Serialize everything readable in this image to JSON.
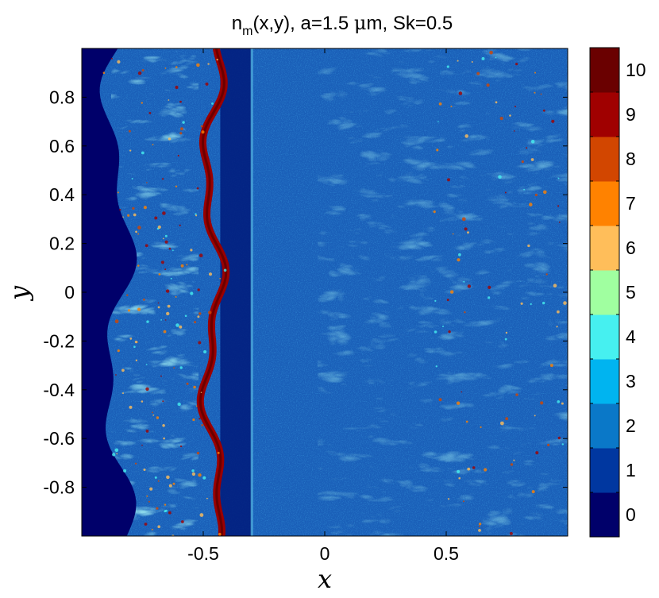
{
  "chart_data": {
    "type": "heatmap",
    "title": {
      "main_prefix": "n",
      "main_sub": "m",
      "main_suffix": "(x,y), a=1.5 ",
      "mu": "μ",
      "unit_tail": "m, Sk=0.5"
    },
    "xlabel": "x",
    "ylabel": "y",
    "xlim": [
      -1,
      1
    ],
    "ylim": [
      -1,
      1
    ],
    "x_ticks": [
      {
        "value": -0.5,
        "label": "-0.5"
      },
      {
        "value": 0,
        "label": "0"
      },
      {
        "value": 0.5,
        "label": "0.5"
      }
    ],
    "y_ticks": [
      {
        "value": 0.8,
        "label": "0.8"
      },
      {
        "value": 0.6,
        "label": "0.6"
      },
      {
        "value": 0.4,
        "label": "0.4"
      },
      {
        "value": 0.2,
        "label": "0.2"
      },
      {
        "value": 0,
        "label": "0"
      },
      {
        "value": -0.2,
        "label": "-0.2"
      },
      {
        "value": -0.4,
        "label": "-0.4"
      },
      {
        "value": -0.6,
        "label": "-0.6"
      },
      {
        "value": -0.8,
        "label": "-0.8"
      }
    ],
    "colorbar": {
      "levels": [
        {
          "value": 0,
          "label": "0",
          "color": "#00006a"
        },
        {
          "value": 1,
          "label": "1",
          "color": "#0037a0"
        },
        {
          "value": 2,
          "label": "2",
          "color": "#0a78c8"
        },
        {
          "value": 3,
          "label": "3",
          "color": "#00b4f0"
        },
        {
          "value": 4,
          "label": "4",
          "color": "#46f0f0"
        },
        {
          "value": 5,
          "label": "5",
          "color": "#a0ffa0"
        },
        {
          "value": 6,
          "label": "6",
          "color": "#ffbe5a"
        },
        {
          "value": 7,
          "label": "7",
          "color": "#ff8200"
        },
        {
          "value": 8,
          "label": "8",
          "color": "#d24600"
        },
        {
          "value": 9,
          "label": "9",
          "color": "#a00000"
        },
        {
          "value": 10,
          "label": "10",
          "color": "#6a0000"
        }
      ]
    },
    "features": {
      "empty_region_x_max": -0.94,
      "gap_region": [
        -0.43,
        -0.3
      ],
      "front_line_x": -0.3,
      "dense_ridge_x_mean": -0.46
    }
  }
}
